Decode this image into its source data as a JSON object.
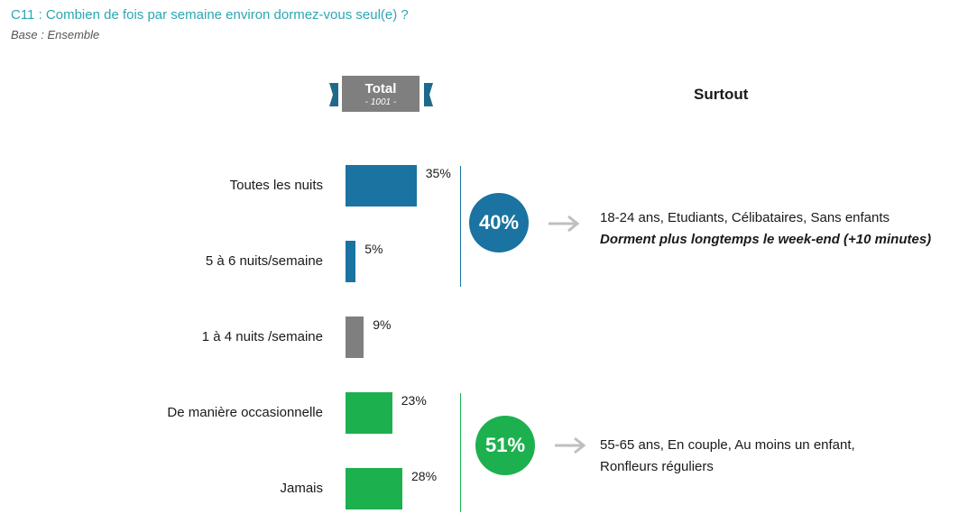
{
  "header": {
    "question": "C11 : Combien de fois par semaine environ dormez-vous seul(e) ?",
    "base": "Base : Ensemble"
  },
  "total_banner": {
    "title": "Total",
    "subtitle": "- 1001 -"
  },
  "surtout_title": "Surtout",
  "chart_data": {
    "type": "bar",
    "orientation": "horizontal",
    "categories": [
      "Toutes les nuits",
      "5 à 6 nuits/semaine",
      "1 à 4 nuits /semaine",
      "De manière occasionnelle",
      "Jamais"
    ],
    "values": [
      35,
      5,
      9,
      23,
      28
    ],
    "value_labels": [
      "35%",
      "5%",
      "9%",
      "23%",
      "28%"
    ],
    "colors": [
      "#1a73a0",
      "#1a73a0",
      "#7f7f7f",
      "#1db04f",
      "#1db04f"
    ],
    "groups": [
      {
        "total_label": "40%",
        "color": "#1a73a0",
        "members": [
          0,
          1
        ],
        "detail_line1": "18-24 ans, Etudiants, Célibataires, Sans enfants",
        "detail_line2": "Dorment plus longtemps le week-end (+10 minutes)"
      },
      {
        "total_label": "51%",
        "color": "#1db04f",
        "members": [
          3,
          4
        ],
        "detail_line1": "55-65 ans, En couple, Au moins un enfant,",
        "detail_line2": "Ronfleurs réguliers"
      }
    ]
  }
}
